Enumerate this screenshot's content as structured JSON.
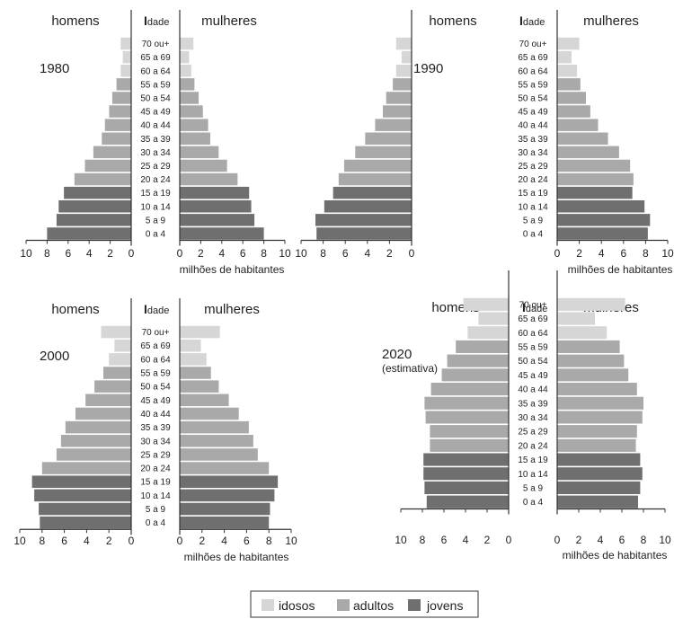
{
  "colors": {
    "idosos": "#d6d6d6",
    "adultos": "#a9a9a9",
    "jovens": "#6f6f6f",
    "axis": "#333333"
  },
  "labels": {
    "men": "homens",
    "women": "mulheres",
    "age_header_initial": "I",
    "age_header_rest": "dade",
    "unit": "milhões de habitantes",
    "age_groups": [
      "0 a 4",
      "5 a 9",
      "10 a 14",
      "15 a 19",
      "20 a 24",
      "25 a 29",
      "30 a 34",
      "35 a 39",
      "40 a 44",
      "45 a 49",
      "50 a 54",
      "55 a 59",
      "60 a 64",
      "65 a 69",
      "70 ou+"
    ],
    "age_category": [
      "jovens",
      "jovens",
      "jovens",
      "jovens",
      "adultos",
      "adultos",
      "adultos",
      "adultos",
      "adultos",
      "adultos",
      "adultos",
      "adultos",
      "idosos",
      "idosos",
      "idosos"
    ],
    "ticks": [
      "0",
      "2",
      "4",
      "6",
      "8",
      "10"
    ]
  },
  "legend": [
    {
      "key": "idosos",
      "label": "idosos"
    },
    {
      "key": "adultos",
      "label": "adultos"
    },
    {
      "key": "jovens",
      "label": "jovens"
    }
  ],
  "chart_data": [
    {
      "type": "bar",
      "title": "1980",
      "subtitle": "",
      "xlabel": "milhões de habitantes",
      "xlim": [
        0,
        10
      ],
      "categories": [
        "0 a 4",
        "5 a 9",
        "10 a 14",
        "15 a 19",
        "20 a 24",
        "25 a 29",
        "30 a 34",
        "35 a 39",
        "40 a 44",
        "45 a 49",
        "50 a 54",
        "55 a 59",
        "60 a 64",
        "65 a 69",
        "70 ou+"
      ],
      "series": [
        {
          "name": "homens",
          "values": [
            8.0,
            7.1,
            6.9,
            6.4,
            5.4,
            4.4,
            3.6,
            2.8,
            2.5,
            2.1,
            1.8,
            1.4,
            1.0,
            0.8,
            1.0
          ]
        },
        {
          "name": "mulheres",
          "values": [
            8.0,
            7.1,
            6.8,
            6.6,
            5.5,
            4.5,
            3.7,
            2.9,
            2.7,
            2.2,
            1.8,
            1.4,
            1.1,
            0.9,
            1.3
          ]
        }
      ]
    },
    {
      "type": "bar",
      "title": "1990",
      "subtitle": "",
      "xlabel": "milhões de habitantes",
      "xlim": [
        0,
        10
      ],
      "categories": [
        "0 a 4",
        "5 a 9",
        "10 a 14",
        "15 a 19",
        "20 a 24",
        "25 a 29",
        "30 a 34",
        "35 a 39",
        "40 a 44",
        "45 a 49",
        "50 a 54",
        "55 a 59",
        "60 a 64",
        "65 a 69",
        "70 ou+"
      ],
      "series": [
        {
          "name": "homens",
          "values": [
            8.6,
            8.7,
            7.9,
            7.1,
            6.6,
            6.1,
            5.1,
            4.2,
            3.3,
            2.6,
            2.3,
            1.7,
            1.4,
            0.9,
            1.4
          ]
        },
        {
          "name": "mulheres",
          "values": [
            8.2,
            8.4,
            7.9,
            6.8,
            6.9,
            6.6,
            5.6,
            4.6,
            3.7,
            3.0,
            2.6,
            2.1,
            1.8,
            1.3,
            2.0
          ]
        }
      ]
    },
    {
      "type": "bar",
      "title": "2000",
      "subtitle": "",
      "xlabel": "milhões de habitantes",
      "xlim": [
        0,
        10
      ],
      "categories": [
        "0 a 4",
        "5 a 9",
        "10 a 14",
        "15 a 19",
        "20 a 24",
        "25 a 29",
        "30 a 34",
        "35 a 39",
        "40 a 44",
        "45 a 49",
        "50 a 54",
        "55 a 59",
        "60 a 64",
        "65 a 69",
        "70 ou+"
      ],
      "series": [
        {
          "name": "homens",
          "values": [
            8.2,
            8.3,
            8.7,
            8.9,
            8.0,
            6.7,
            6.3,
            5.9,
            5.0,
            4.1,
            3.3,
            2.5,
            2.0,
            1.5,
            2.7
          ]
        },
        {
          "name": "mulheres",
          "values": [
            8.0,
            8.1,
            8.5,
            8.8,
            8.0,
            7.0,
            6.6,
            6.2,
            5.3,
            4.4,
            3.5,
            2.8,
            2.4,
            1.9,
            3.6
          ]
        }
      ]
    },
    {
      "type": "bar",
      "title": "2020",
      "subtitle": "(estimativa)",
      "xlabel": "milhões de habitantes",
      "xlim": [
        0,
        10
      ],
      "categories": [
        "0 a 4",
        "5 a 9",
        "10 a 14",
        "15 a 19",
        "20 a 24",
        "25 a 29",
        "30 a 34",
        "35 a 39",
        "40 a 44",
        "45 a 49",
        "50 a 54",
        "55 a 59",
        "60 a 64",
        "65 a 69",
        "70 ou+"
      ],
      "series": [
        {
          "name": "homens",
          "values": [
            7.6,
            7.8,
            7.9,
            7.9,
            7.3,
            7.3,
            7.7,
            7.8,
            7.2,
            6.2,
            5.7,
            4.9,
            3.8,
            2.8,
            4.2
          ]
        },
        {
          "name": "mulheres",
          "values": [
            7.5,
            7.7,
            7.9,
            7.7,
            7.3,
            7.4,
            7.9,
            8.0,
            7.4,
            6.6,
            6.2,
            5.8,
            4.6,
            3.5,
            6.3
          ]
        }
      ]
    }
  ]
}
